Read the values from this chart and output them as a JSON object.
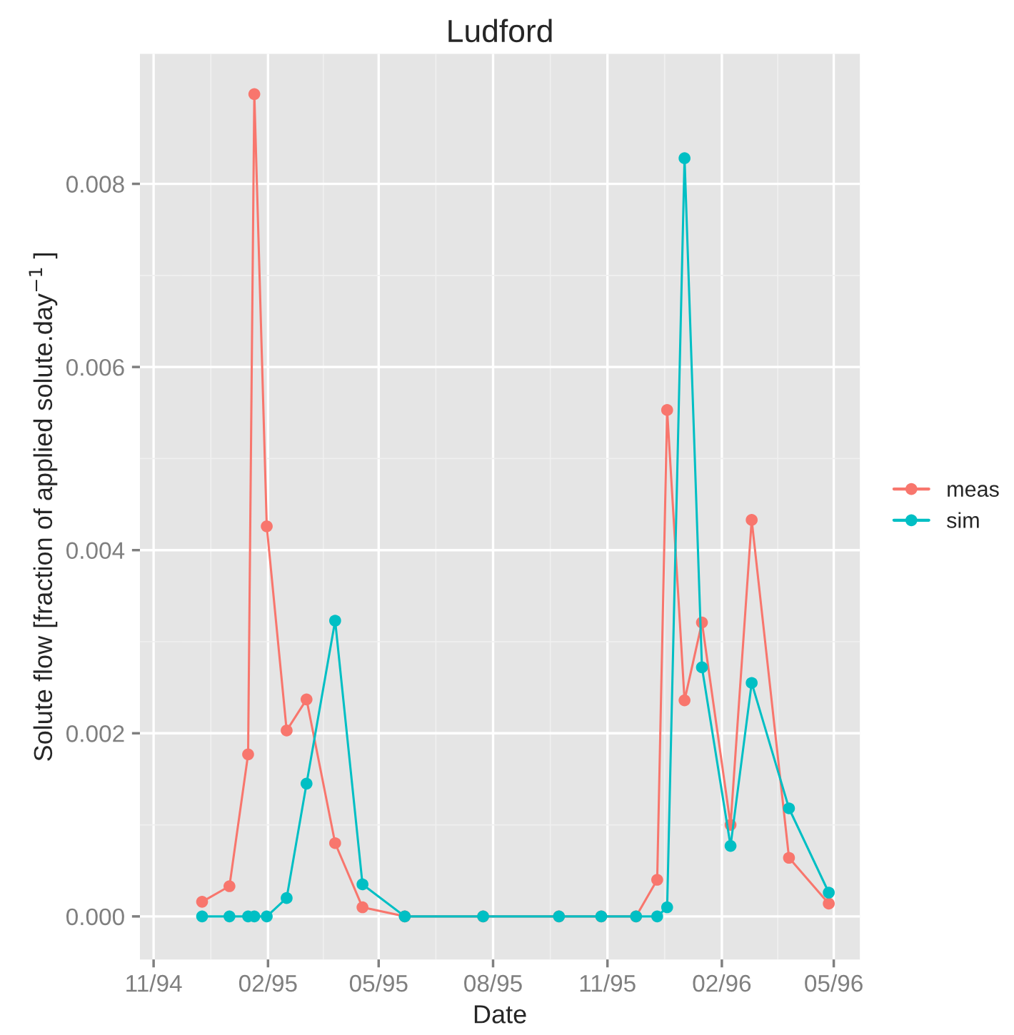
{
  "chart_data": {
    "type": "line",
    "title": "Ludford",
    "xlabel": "Date",
    "ylabel": "Solute flow [fraction of applied solute.day$^{−1}$ ]",
    "x": [
      "1994-12-10",
      "1995-01-01",
      "1995-01-16",
      "1995-01-21",
      "1995-01-31",
      "1995-02-16",
      "1995-03-04",
      "1995-03-27",
      "1995-04-18",
      "1995-05-22",
      "1995-07-24",
      "1995-09-23",
      "1995-10-27",
      "1995-11-24",
      "1995-12-11",
      "1995-12-19",
      "1996-01-02",
      "1996-01-16",
      "1996-02-08",
      "1996-02-25",
      "1996-03-26",
      "1996-04-27"
    ],
    "series": [
      {
        "name": "meas",
        "color": "#f8766d",
        "values": [
          0.00016,
          0.00033,
          0.00177,
          0.00898,
          0.00426,
          0.00203,
          0.00237,
          0.0008,
          0.0001,
          0,
          0,
          0,
          0,
          0,
          0.0004,
          0.00553,
          0.00236,
          0.00321,
          0.001,
          0.00433,
          0.00064,
          0.00014
        ]
      },
      {
        "name": "sim",
        "color": "#00bfc4",
        "values": [
          0,
          0,
          0,
          0,
          0,
          0.0002,
          0.00145,
          0.00323,
          0.00035,
          0,
          0,
          0,
          0,
          0,
          0,
          0.0001,
          0.00828,
          0.00272,
          0.00077,
          0.00255,
          0.00118,
          0.00026
        ]
      }
    ],
    "xlim": [
      "1994-10-21",
      "1996-05-22"
    ],
    "xticks": [
      {
        "value": "1994-11-01",
        "label": "11/94"
      },
      {
        "value": "1995-02-01",
        "label": "02/95"
      },
      {
        "value": "1995-05-01",
        "label": "05/95"
      },
      {
        "value": "1995-08-01",
        "label": "08/95"
      },
      {
        "value": "1995-11-01",
        "label": "11/95"
      },
      {
        "value": "1996-02-01",
        "label": "02/96"
      },
      {
        "value": "1996-05-01",
        "label": "05/96"
      }
    ],
    "ylim": [
      -0.00047,
      0.00942
    ],
    "yticks": [
      {
        "value": 0,
        "label": "0.000"
      },
      {
        "value": 0.002,
        "label": "0.002"
      },
      {
        "value": 0.004,
        "label": "0.004"
      },
      {
        "value": 0.006,
        "label": "0.006"
      },
      {
        "value": 0.008,
        "label": "0.008"
      }
    ],
    "grid": true,
    "legend": "right",
    "marker": "circle",
    "line_style": "solid"
  }
}
